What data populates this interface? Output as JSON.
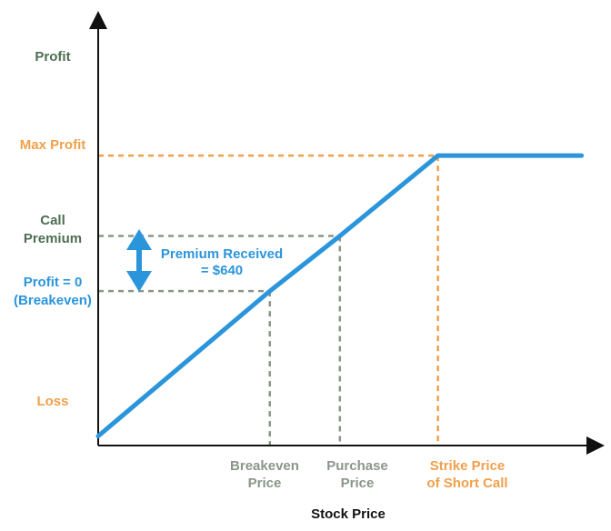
{
  "chart_data": {
    "type": "line",
    "title": "",
    "xlabel": "Stock Price",
    "ylabel": "",
    "y_labels": {
      "profit": "Profit",
      "max_profit": "Max Profit",
      "call_premium_line1": "Call",
      "call_premium_line2": "Premium",
      "breakeven_line1": "Profit = 0",
      "breakeven_line2": "(Breakeven)",
      "loss": "Loss"
    },
    "x_labels": {
      "breakeven_line1": "Breakeven",
      "breakeven_line2": "Price",
      "purchase_line1": "Purchase",
      "purchase_line2": "Price",
      "strike_line1": "Strike Price",
      "strike_line2": "of Short Call"
    },
    "annotation": {
      "line1": "Premium Received",
      "line2": "= $640"
    },
    "payoff_points": [
      {
        "x": 0,
        "y": -4.6
      },
      {
        "x": 4.9,
        "y": 0
      },
      {
        "x": 6.9,
        "y": 1.75
      },
      {
        "x": 9.7,
        "y": 4.3
      },
      {
        "x": 13.8,
        "y": 4.3
      }
    ],
    "levels": {
      "max_profit": 4.3,
      "call_premium": 1.75,
      "breakeven": 0
    },
    "x_marks": {
      "breakeven_price": 4.9,
      "purchase_price": 6.9,
      "strike_price": 9.7
    },
    "axis_ranges": {
      "x": [
        0,
        14.2
      ],
      "y": [
        -4.9,
        8.6
      ]
    },
    "grid": false,
    "legend": "none",
    "colors": {
      "payoff_line": "#2b95dc",
      "max_profit": "#f0a04b",
      "strike_label": "#f0a04b",
      "loss": "#f0a04b",
      "profit": "#4d6e52",
      "call_premium": "#4d6e52",
      "breakeven": "#2b95dc",
      "gray_guides": "#8a968a",
      "gray_labels": "#8a968a",
      "axis": "#111111"
    }
  }
}
